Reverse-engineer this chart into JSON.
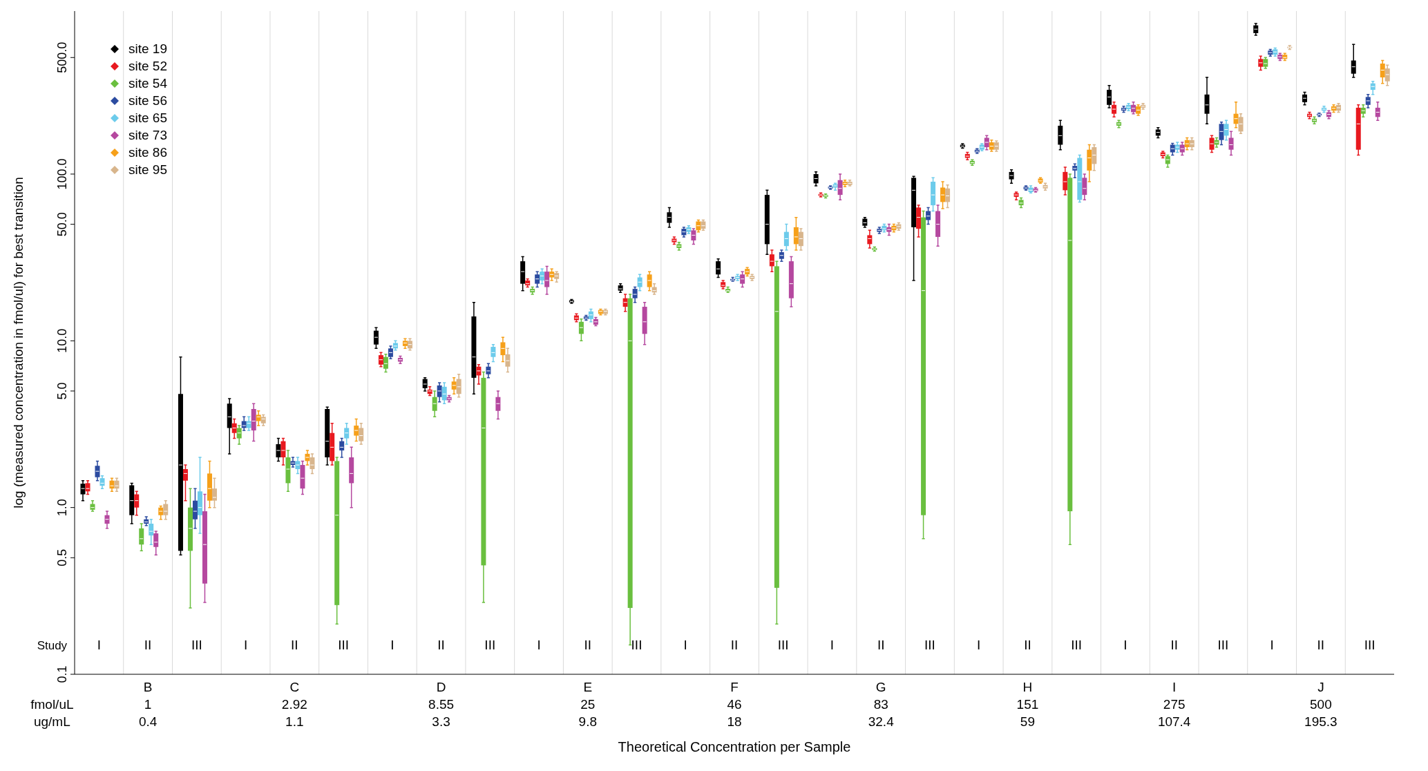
{
  "chart_data": {
    "type": "box",
    "xlabel": "Theoretical Concentration per Sample",
    "ylabel": "log (measured concentration in fmol/ul) for best transition",
    "categories": [
      "I",
      "II",
      "III",
      "I",
      "II",
      "III",
      "I",
      "II",
      "III",
      "I",
      "II",
      "III",
      "I",
      "II",
      "III",
      "I",
      "II",
      "III",
      "I",
      "II",
      "III",
      "I",
      "II",
      "III",
      "I",
      "II",
      "III"
    ],
    "annotations": [
      "Study",
      "fmol/uL",
      "ug/mL",
      "B",
      "1",
      "0.4",
      "C",
      "2.92",
      "1.1",
      "D",
      "8.55",
      "3.3",
      "E",
      "25",
      "9.8",
      "F",
      "46",
      "18",
      "G",
      "83",
      "32.4",
      "H",
      "151",
      "59",
      "I",
      "275",
      "107.4",
      "J",
      "500",
      "195.3"
    ],
    "log": "y",
    "ylim": [
      0.1,
      950
    ],
    "yticks": [
      0.1,
      0.5,
      {
        "value": 1,
        "label": "1.0"
      },
      {
        "value": 5,
        "label": "5.0"
      },
      {
        "value": 10,
        "label": "10.0"
      },
      {
        "value": 50,
        "label": "50.0"
      },
      {
        "value": 100,
        "label": "100.0"
      },
      {
        "value": 500,
        "label": "500.0"
      }
    ],
    "grid": "x",
    "legend": "top left",
    "series": [
      {
        "name": "site 19",
        "color": "#000000",
        "boxes": [
          {
            "low": 1.1,
            "q1": 1.2,
            "median": 1.3,
            "q3": 1.39,
            "high": 1.45
          },
          {
            "low": 0.8,
            "q1": 0.9,
            "median": 1.1,
            "q3": 1.36,
            "high": 1.4
          },
          {
            "low": 0.52,
            "q1": 0.55,
            "median": 1.8,
            "q3": 4.8,
            "high": 8
          },
          {
            "low": 2.1,
            "q1": 3,
            "median": 3.5,
            "q3": 4.2,
            "high": 4.5
          },
          {
            "low": 1.9,
            "q1": 2,
            "median": 2.2,
            "q3": 2.4,
            "high": 2.6
          },
          {
            "low": 1.8,
            "q1": 2,
            "median": 2.5,
            "q3": 3.9,
            "high": 4
          },
          {
            "low": 9,
            "q1": 9.5,
            "median": 10.5,
            "q3": 11.5,
            "high": 12
          },
          {
            "low": 5,
            "q1": 5.2,
            "median": 5.5,
            "q3": 5.9,
            "high": 6
          },
          {
            "low": 4.8,
            "q1": 6,
            "median": 8,
            "q3": 14,
            "high": 17
          },
          {
            "low": 20,
            "q1": 22,
            "median": 26,
            "q3": 30,
            "high": 32
          },
          {
            "low": 16.8,
            "q1": 17,
            "median": 17.2,
            "q3": 17.5,
            "high": 17.7
          },
          {
            "low": 19.5,
            "q1": 20,
            "median": 20.5,
            "q3": 21.5,
            "high": 22
          },
          {
            "low": 48,
            "q1": 51,
            "median": 55,
            "q3": 59,
            "high": 63
          },
          {
            "low": 24,
            "q1": 25,
            "median": 27,
            "q3": 30,
            "high": 31
          },
          {
            "low": 33,
            "q1": 38,
            "median": 50,
            "q3": 75,
            "high": 80
          },
          {
            "low": 85,
            "q1": 88,
            "median": 94,
            "q3": 100,
            "high": 103
          },
          {
            "low": 48,
            "q1": 49,
            "median": 51,
            "q3": 54,
            "high": 55
          },
          {
            "low": 23,
            "q1": 48,
            "median": 80,
            "q3": 95,
            "high": 97
          },
          {
            "low": 143,
            "q1": 145,
            "median": 147,
            "q3": 150,
            "high": 152
          },
          {
            "low": 88,
            "q1": 93,
            "median": 98,
            "q3": 103,
            "high": 106
          },
          {
            "low": 140,
            "q1": 150,
            "median": 170,
            "q3": 195,
            "high": 210
          },
          {
            "low": 250,
            "q1": 260,
            "median": 290,
            "q3": 320,
            "high": 340
          },
          {
            "low": 165,
            "q1": 170,
            "median": 178,
            "q3": 185,
            "high": 190
          },
          {
            "low": 200,
            "q1": 230,
            "median": 260,
            "q3": 300,
            "high": 380
          },
          {
            "low": 680,
            "q1": 700,
            "median": 740,
            "q3": 780,
            "high": 800
          },
          {
            "low": 260,
            "q1": 270,
            "median": 285,
            "q3": 300,
            "high": 310
          },
          {
            "low": 380,
            "q1": 400,
            "median": 440,
            "q3": 480,
            "high": 600
          }
        ]
      },
      {
        "name": "site 52",
        "color": "#e8191f",
        "boxes": [
          {
            "low": 1.2,
            "q1": 1.25,
            "median": 1.3,
            "q3": 1.4,
            "high": 1.45
          },
          {
            "low": 0.9,
            "q1": 1,
            "median": 1.1,
            "q3": 1.2,
            "high": 1.25
          },
          {
            "low": 1.1,
            "q1": 1.45,
            "median": 1.6,
            "q3": 1.7,
            "high": 1.8
          },
          {
            "low": 2.6,
            "q1": 2.8,
            "median": 3,
            "q3": 3.2,
            "high": 3.4
          },
          {
            "low": 1.8,
            "q1": 2,
            "median": 2.2,
            "q3": 2.5,
            "high": 2.6
          },
          {
            "low": 1.8,
            "q1": 1.9,
            "median": 2.3,
            "q3": 2.8,
            "high": 3.2
          },
          {
            "low": 7,
            "q1": 7.2,
            "median": 7.7,
            "q3": 8.2,
            "high": 8.5
          },
          {
            "low": 4.7,
            "q1": 4.8,
            "median": 5,
            "q3": 5.1,
            "high": 5.3
          },
          {
            "low": 5.5,
            "q1": 6.2,
            "median": 6.6,
            "q3": 7,
            "high": 7.2
          },
          {
            "low": 21,
            "q1": 21.5,
            "median": 22,
            "q3": 23,
            "high": 23.5
          },
          {
            "low": 13,
            "q1": 13.3,
            "median": 13.7,
            "q3": 14.2,
            "high": 14.5
          },
          {
            "low": 15,
            "q1": 16,
            "median": 17,
            "q3": 18,
            "high": 19
          },
          {
            "low": 38,
            "q1": 39,
            "median": 40,
            "q3": 41,
            "high": 42
          },
          {
            "low": 20.5,
            "q1": 21,
            "median": 21.5,
            "q3": 22.5,
            "high": 23
          },
          {
            "low": 26,
            "q1": 28,
            "median": 30,
            "q3": 33,
            "high": 35
          },
          {
            "low": 73,
            "q1": 74,
            "median": 75,
            "q3": 76,
            "high": 77
          },
          {
            "low": 36,
            "q1": 38,
            "median": 41,
            "q3": 43,
            "high": 46
          },
          {
            "low": 42,
            "q1": 47,
            "median": 55,
            "q3": 63,
            "high": 65
          },
          {
            "low": 122,
            "q1": 125,
            "median": 128,
            "q3": 132,
            "high": 135
          },
          {
            "low": 70,
            "q1": 73,
            "median": 75,
            "q3": 77,
            "high": 78
          },
          {
            "low": 75,
            "q1": 80,
            "median": 90,
            "q3": 103,
            "high": 110
          },
          {
            "low": 220,
            "q1": 230,
            "median": 245,
            "q3": 260,
            "high": 270
          },
          {
            "low": 125,
            "q1": 128,
            "median": 131,
            "q3": 135,
            "high": 137
          },
          {
            "low": 135,
            "q1": 140,
            "median": 152,
            "q3": 165,
            "high": 170
          },
          {
            "low": 420,
            "q1": 440,
            "median": 465,
            "q3": 490,
            "high": 510
          },
          {
            "low": 215,
            "q1": 220,
            "median": 225,
            "q3": 230,
            "high": 235
          },
          {
            "low": 130,
            "q1": 140,
            "median": 200,
            "q3": 250,
            "high": 260
          }
        ]
      },
      {
        "name": "site 54",
        "color": "#6abf3f",
        "boxes": [
          {
            "low": 0.95,
            "q1": 0.97,
            "median": 1,
            "q3": 1.05,
            "high": 1.1
          },
          {
            "low": 0.55,
            "q1": 0.6,
            "median": 0.65,
            "q3": 0.75,
            "high": 0.8
          },
          {
            "low": 0.25,
            "q1": 0.55,
            "median": 0.75,
            "q3": 1,
            "high": 1.3
          },
          {
            "low": 2.4,
            "q1": 2.6,
            "median": 2.8,
            "q3": 3,
            "high": 3.1
          },
          {
            "low": 1.25,
            "q1": 1.4,
            "median": 1.7,
            "q3": 2,
            "high": 2.2
          },
          {
            "low": 0.2,
            "q1": 0.26,
            "median": 0.9,
            "q3": 1.9,
            "high": 2
          },
          {
            "low": 6.5,
            "q1": 6.8,
            "median": 7.3,
            "q3": 8,
            "high": 8.3
          },
          {
            "low": 3.5,
            "q1": 3.8,
            "median": 4.2,
            "q3": 4.6,
            "high": 5
          },
          {
            "low": 0.27,
            "q1": 0.45,
            "median": 3,
            "q3": 6,
            "high": 6.5
          },
          {
            "low": 19,
            "q1": 19.5,
            "median": 20,
            "q3": 20.5,
            "high": 21
          },
          {
            "low": 10,
            "q1": 11,
            "median": 12,
            "q3": 13,
            "high": 13.5
          },
          {
            "low": 0.15,
            "q1": 0.25,
            "median": 10,
            "q3": 18,
            "high": 19
          },
          {
            "low": 35,
            "q1": 36,
            "median": 37,
            "q3": 38,
            "high": 39
          },
          {
            "low": 19.5,
            "q1": 19.8,
            "median": 20,
            "q3": 20.5,
            "high": 21
          },
          {
            "low": 0.2,
            "q1": 0.33,
            "median": 15,
            "q3": 28,
            "high": 30
          },
          {
            "low": 72,
            "q1": 73,
            "median": 74,
            "q3": 75,
            "high": 76
          },
          {
            "low": 34.5,
            "q1": 35,
            "median": 35.5,
            "q3": 36,
            "high": 36.5
          },
          {
            "low": 0.65,
            "q1": 0.9,
            "median": 20,
            "q3": 55,
            "high": 60
          },
          {
            "low": 113,
            "q1": 115,
            "median": 117,
            "q3": 120,
            "high": 122
          },
          {
            "low": 63,
            "q1": 65,
            "median": 67,
            "q3": 70,
            "high": 72
          },
          {
            "low": 0.6,
            "q1": 0.95,
            "median": 40,
            "q3": 95,
            "high": 100
          },
          {
            "low": 190,
            "q1": 195,
            "median": 200,
            "q3": 205,
            "high": 210
          },
          {
            "low": 110,
            "q1": 115,
            "median": 122,
            "q3": 128,
            "high": 130
          },
          {
            "low": 145,
            "q1": 150,
            "median": 155,
            "q3": 160,
            "high": 165
          },
          {
            "low": 430,
            "q1": 440,
            "median": 460,
            "q3": 490,
            "high": 500
          },
          {
            "low": 200,
            "q1": 205,
            "median": 210,
            "q3": 215,
            "high": 220
          },
          {
            "low": 220,
            "q1": 230,
            "median": 240,
            "q3": 250,
            "high": 260
          }
        ]
      },
      {
        "name": "site 56",
        "color": "#2b4ba0",
        "boxes": [
          {
            "low": 1.45,
            "q1": 1.52,
            "median": 1.65,
            "q3": 1.78,
            "high": 1.9
          },
          {
            "low": 0.78,
            "q1": 0.8,
            "median": 0.82,
            "q3": 0.85,
            "high": 0.88
          },
          {
            "low": 0.75,
            "q1": 0.85,
            "median": 0.95,
            "q3": 1.1,
            "high": 1.3
          },
          {
            "low": 2.9,
            "q1": 3,
            "median": 3.1,
            "q3": 3.3,
            "high": 3.5
          },
          {
            "low": 1.75,
            "q1": 1.8,
            "median": 1.85,
            "q3": 1.9,
            "high": 2
          },
          {
            "low": 2,
            "q1": 2.2,
            "median": 2.3,
            "q3": 2.5,
            "high": 2.6
          },
          {
            "low": 7.8,
            "q1": 8,
            "median": 8.5,
            "q3": 9,
            "high": 9.3
          },
          {
            "low": 4.3,
            "q1": 4.6,
            "median": 5,
            "q3": 5.4,
            "high": 5.6
          },
          {
            "low": 6,
            "q1": 6.3,
            "median": 6.6,
            "q3": 7,
            "high": 7.3
          },
          {
            "low": 21,
            "q1": 22,
            "median": 23.5,
            "q3": 25,
            "high": 26
          },
          {
            "low": 13.3,
            "q1": 13.5,
            "median": 13.7,
            "q3": 14,
            "high": 14.2
          },
          {
            "low": 17,
            "q1": 18,
            "median": 19,
            "q3": 20.5,
            "high": 21
          },
          {
            "low": 42,
            "q1": 43,
            "median": 45,
            "q3": 47,
            "high": 48
          },
          {
            "low": 22.8,
            "q1": 23,
            "median": 23.2,
            "q3": 23.5,
            "high": 24
          },
          {
            "low": 30,
            "q1": 31,
            "median": 32.5,
            "q3": 34,
            "high": 35
          },
          {
            "low": 81,
            "q1": 82,
            "median": 83,
            "q3": 84,
            "high": 85
          },
          {
            "low": 44,
            "q1": 45,
            "median": 46,
            "q3": 47,
            "high": 48
          },
          {
            "low": 50,
            "q1": 53,
            "median": 56,
            "q3": 60,
            "high": 63
          },
          {
            "low": 133,
            "q1": 135,
            "median": 137,
            "q3": 140,
            "high": 142
          },
          {
            "low": 80,
            "q1": 81,
            "median": 82.5,
            "q3": 84,
            "high": 85
          },
          {
            "low": 95,
            "q1": 105,
            "median": 108,
            "q3": 112,
            "high": 115
          },
          {
            "low": 235,
            "q1": 240,
            "median": 245,
            "q3": 250,
            "high": 255
          },
          {
            "low": 130,
            "q1": 135,
            "median": 142,
            "q3": 150,
            "high": 153
          },
          {
            "low": 150,
            "q1": 160,
            "median": 180,
            "q3": 200,
            "high": 205
          },
          {
            "low": 510,
            "q1": 520,
            "median": 535,
            "q3": 550,
            "high": 560
          },
          {
            "low": 222,
            "q1": 225,
            "median": 228,
            "q3": 230,
            "high": 232
          },
          {
            "low": 250,
            "q1": 260,
            "median": 275,
            "q3": 290,
            "high": 300
          }
        ]
      },
      {
        "name": "site 65",
        "color": "#6ccbeb",
        "boxes": [
          {
            "low": 1.3,
            "q1": 1.35,
            "median": 1.4,
            "q3": 1.5,
            "high": 1.55
          },
          {
            "low": 0.6,
            "q1": 0.68,
            "median": 0.72,
            "q3": 0.8,
            "high": 0.85
          },
          {
            "low": 0.7,
            "q1": 0.9,
            "median": 1,
            "q3": 1.25,
            "high": 2
          },
          {
            "low": 2.9,
            "q1": 3,
            "median": 3.2,
            "q3": 3.3,
            "high": 3.5
          },
          {
            "low": 1.6,
            "q1": 1.7,
            "median": 1.8,
            "q3": 1.9,
            "high": 2
          },
          {
            "low": 2.4,
            "q1": 2.6,
            "median": 2.8,
            "q3": 3,
            "high": 3.2
          },
          {
            "low": 8.8,
            "q1": 9,
            "median": 9.3,
            "q3": 9.7,
            "high": 10
          },
          {
            "low": 4.2,
            "q1": 4.4,
            "median": 4.8,
            "q3": 5.3,
            "high": 5.6
          },
          {
            "low": 7.5,
            "q1": 8,
            "median": 8.5,
            "q3": 9.2,
            "high": 9.5
          },
          {
            "low": 22,
            "q1": 23,
            "median": 24.5,
            "q3": 26,
            "high": 27
          },
          {
            "low": 13,
            "q1": 13.5,
            "median": 14.3,
            "q3": 15,
            "high": 15.5
          },
          {
            "low": 20,
            "q1": 21,
            "median": 22.5,
            "q3": 24,
            "high": 25
          },
          {
            "low": 44,
            "q1": 45,
            "median": 46.5,
            "q3": 48,
            "high": 49
          },
          {
            "low": 23,
            "q1": 23.5,
            "median": 24,
            "q3": 24.5,
            "high": 25
          },
          {
            "low": 35,
            "q1": 37,
            "median": 41,
            "q3": 45,
            "high": 50
          },
          {
            "low": 80,
            "q1": 83,
            "median": 85,
            "q3": 87,
            "high": 88
          },
          {
            "low": 45,
            "q1": 46,
            "median": 47,
            "q3": 49,
            "high": 50
          },
          {
            "low": 60,
            "q1": 65,
            "median": 75,
            "q3": 90,
            "high": 95
          },
          {
            "low": 138,
            "q1": 140,
            "median": 145,
            "q3": 150,
            "high": 152
          },
          {
            "low": 77,
            "q1": 78,
            "median": 80,
            "q3": 83,
            "high": 85
          },
          {
            "low": 68,
            "q1": 70,
            "median": 90,
            "q3": 125,
            "high": 130
          },
          {
            "low": 240,
            "q1": 245,
            "median": 252,
            "q3": 260,
            "high": 265
          },
          {
            "low": 135,
            "q1": 140,
            "median": 145,
            "q3": 150,
            "high": 155
          },
          {
            "low": 160,
            "q1": 170,
            "median": 185,
            "q3": 200,
            "high": 210
          },
          {
            "low": 510,
            "q1": 520,
            "median": 540,
            "q3": 560,
            "high": 570
          },
          {
            "low": 235,
            "q1": 240,
            "median": 245,
            "q3": 250,
            "high": 255
          },
          {
            "low": 300,
            "q1": 320,
            "median": 335,
            "q3": 350,
            "high": 360
          }
        ]
      },
      {
        "name": "site 73",
        "color": "#b5489f",
        "boxes": [
          {
            "low": 0.75,
            "q1": 0.8,
            "median": 0.85,
            "q3": 0.9,
            "high": 0.95
          },
          {
            "low": 0.52,
            "q1": 0.58,
            "median": 0.62,
            "q3": 0.7,
            "high": 0.72
          },
          {
            "low": 0.27,
            "q1": 0.35,
            "median": 0.6,
            "q3": 0.95,
            "high": 1.2
          },
          {
            "low": 2.5,
            "q1": 2.9,
            "median": 3.3,
            "q3": 3.9,
            "high": 4.2
          },
          {
            "low": 1.2,
            "q1": 1.3,
            "median": 1.5,
            "q3": 1.8,
            "high": 1.9
          },
          {
            "low": 1,
            "q1": 1.4,
            "median": 1.6,
            "q3": 2,
            "high": 2.3
          },
          {
            "low": 7.3,
            "q1": 7.5,
            "median": 7.7,
            "q3": 7.9,
            "high": 8.1
          },
          {
            "low": 4.3,
            "q1": 4.4,
            "median": 4.5,
            "q3": 4.6,
            "high": 4.7
          },
          {
            "low": 3.4,
            "q1": 3.8,
            "median": 4.2,
            "q3": 4.6,
            "high": 5
          },
          {
            "low": 19,
            "q1": 21,
            "median": 23,
            "q3": 26,
            "high": 28
          },
          {
            "low": 12.3,
            "q1": 12.5,
            "median": 13,
            "q3": 13.5,
            "high": 13.8
          },
          {
            "low": 9.5,
            "q1": 11,
            "median": 13,
            "q3": 16,
            "high": 17
          },
          {
            "low": 38,
            "q1": 40,
            "median": 43,
            "q3": 46,
            "high": 47
          },
          {
            "low": 21,
            "q1": 22,
            "median": 23.5,
            "q3": 25,
            "high": 26
          },
          {
            "low": 16,
            "q1": 18,
            "median": 22,
            "q3": 30,
            "high": 32
          },
          {
            "low": 70,
            "q1": 75,
            "median": 82,
            "q3": 92,
            "high": 100
          },
          {
            "low": 43,
            "q1": 45,
            "median": 46.5,
            "q3": 48,
            "high": 50
          },
          {
            "low": 37,
            "q1": 42,
            "median": 50,
            "q3": 60,
            "high": 65
          },
          {
            "low": 140,
            "q1": 145,
            "median": 155,
            "q3": 165,
            "high": 170
          },
          {
            "low": 78,
            "q1": 79,
            "median": 80,
            "q3": 82,
            "high": 83
          },
          {
            "low": 70,
            "q1": 75,
            "median": 82,
            "q3": 95,
            "high": 100
          },
          {
            "low": 230,
            "q1": 235,
            "median": 248,
            "q3": 260,
            "high": 270
          },
          {
            "low": 130,
            "q1": 135,
            "median": 142,
            "q3": 150,
            "high": 155
          },
          {
            "low": 130,
            "q1": 140,
            "median": 150,
            "q3": 165,
            "high": 180
          },
          {
            "low": 480,
            "q1": 490,
            "median": 505,
            "q3": 520,
            "high": 530
          },
          {
            "low": 215,
            "q1": 220,
            "median": 228,
            "q3": 235,
            "high": 240
          },
          {
            "low": 210,
            "q1": 220,
            "median": 235,
            "q3": 250,
            "high": 270
          }
        ]
      },
      {
        "name": "site 86",
        "color": "#f6a01a",
        "boxes": [
          {
            "low": 1.25,
            "q1": 1.3,
            "median": 1.35,
            "q3": 1.45,
            "high": 1.5
          },
          {
            "low": 0.85,
            "q1": 0.9,
            "median": 0.95,
            "q3": 1,
            "high": 1.02
          },
          {
            "low": 1,
            "q1": 1.1,
            "median": 1.3,
            "q3": 1.6,
            "high": 1.9
          },
          {
            "low": 3.1,
            "q1": 3.3,
            "median": 3.5,
            "q3": 3.6,
            "high": 3.8
          },
          {
            "low": 1.8,
            "q1": 1.9,
            "median": 2,
            "q3": 2.1,
            "high": 2.2
          },
          {
            "low": 2.5,
            "q1": 2.7,
            "median": 2.9,
            "q3": 3.1,
            "high": 3.4
          },
          {
            "low": 9,
            "q1": 9.3,
            "median": 9.7,
            "q3": 10,
            "high": 10.3
          },
          {
            "low": 4.8,
            "q1": 5.1,
            "median": 5.4,
            "q3": 5.7,
            "high": 6
          },
          {
            "low": 7.5,
            "q1": 8.2,
            "median": 9,
            "q3": 9.8,
            "high": 10.5
          },
          {
            "low": 23,
            "q1": 24,
            "median": 25,
            "q3": 26,
            "high": 27
          },
          {
            "low": 14.3,
            "q1": 14.5,
            "median": 15,
            "q3": 15.3,
            "high": 15.5
          },
          {
            "low": 20,
            "q1": 21,
            "median": 23,
            "q3": 25,
            "high": 26
          },
          {
            "low": 45,
            "q1": 46,
            "median": 49,
            "q3": 52,
            "high": 53
          },
          {
            "low": 24.5,
            "q1": 25,
            "median": 26,
            "q3": 27,
            "high": 27.5
          },
          {
            "low": 35,
            "q1": 38,
            "median": 42,
            "q3": 48,
            "high": 55
          },
          {
            "low": 84,
            "q1": 86,
            "median": 88,
            "q3": 90,
            "high": 92
          },
          {
            "low": 45,
            "q1": 46,
            "median": 47.5,
            "q3": 49,
            "high": 50
          },
          {
            "low": 62,
            "q1": 68,
            "median": 75,
            "q3": 83,
            "high": 90
          },
          {
            "low": 137,
            "q1": 140,
            "median": 147,
            "q3": 155,
            "high": 160
          },
          {
            "low": 88,
            "q1": 89,
            "median": 91,
            "q3": 94,
            "high": 95
          },
          {
            "low": 90,
            "q1": 105,
            "median": 125,
            "q3": 140,
            "high": 150
          },
          {
            "low": 225,
            "q1": 230,
            "median": 242,
            "q3": 255,
            "high": 260
          },
          {
            "low": 140,
            "q1": 145,
            "median": 152,
            "q3": 160,
            "high": 165
          },
          {
            "low": 190,
            "q1": 200,
            "median": 215,
            "q3": 230,
            "high": 270
          },
          {
            "low": 480,
            "q1": 490,
            "median": 500,
            "q3": 520,
            "high": 530
          },
          {
            "low": 235,
            "q1": 240,
            "median": 248,
            "q3": 255,
            "high": 260
          },
          {
            "low": 350,
            "q1": 380,
            "median": 420,
            "q3": 460,
            "high": 480
          }
        ]
      },
      {
        "name": "site 95",
        "color": "#d8b58c",
        "boxes": [
          {
            "low": 1.25,
            "q1": 1.3,
            "median": 1.35,
            "q3": 1.45,
            "high": 1.5
          },
          {
            "low": 0.85,
            "q1": 0.9,
            "median": 0.95,
            "q3": 1.05,
            "high": 1.1
          },
          {
            "low": 1,
            "q1": 1.1,
            "median": 1.15,
            "q3": 1.3,
            "high": 1.5
          },
          {
            "low": 3.1,
            "q1": 3.2,
            "median": 3.4,
            "q3": 3.5,
            "high": 3.6
          },
          {
            "low": 1.6,
            "q1": 1.7,
            "median": 1.8,
            "q3": 2,
            "high": 2.1
          },
          {
            "low": 2.4,
            "q1": 2.5,
            "median": 2.7,
            "q3": 3,
            "high": 3.2
          },
          {
            "low": 8.8,
            "q1": 9,
            "median": 9.5,
            "q3": 10,
            "high": 10.3
          },
          {
            "low": 4.6,
            "q1": 4.8,
            "median": 5.3,
            "q3": 5.9,
            "high": 6.3
          },
          {
            "low": 6.5,
            "q1": 7,
            "median": 7.6,
            "q3": 8.3,
            "high": 9
          },
          {
            "low": 22.5,
            "q1": 23.5,
            "median": 24.5,
            "q3": 25.5,
            "high": 26
          },
          {
            "low": 14.3,
            "q1": 14.5,
            "median": 15,
            "q3": 15.3,
            "high": 15.5
          },
          {
            "low": 19,
            "q1": 19.5,
            "median": 20,
            "q3": 21,
            "high": 22
          },
          {
            "low": 46,
            "q1": 47,
            "median": 49,
            "q3": 52,
            "high": 53
          },
          {
            "low": 23,
            "q1": 23.5,
            "median": 24,
            "q3": 24.5,
            "high": 25
          },
          {
            "low": 35,
            "q1": 37,
            "median": 41,
            "q3": 45,
            "high": 47
          },
          {
            "low": 85,
            "q1": 86,
            "median": 88,
            "q3": 90,
            "high": 92
          },
          {
            "low": 46,
            "q1": 47,
            "median": 48.5,
            "q3": 50,
            "high": 51
          },
          {
            "low": 63,
            "q1": 68,
            "median": 74,
            "q3": 82,
            "high": 86
          },
          {
            "low": 137,
            "q1": 140,
            "median": 147,
            "q3": 155,
            "high": 158
          },
          {
            "low": 80,
            "q1": 82,
            "median": 84,
            "q3": 86,
            "high": 88
          },
          {
            "low": 105,
            "q1": 115,
            "median": 130,
            "q3": 145,
            "high": 150
          },
          {
            "low": 245,
            "q1": 250,
            "median": 255,
            "q3": 260,
            "high": 265
          },
          {
            "low": 140,
            "q1": 145,
            "median": 152,
            "q3": 160,
            "high": 165
          },
          {
            "low": 175,
            "q1": 180,
            "median": 200,
            "q3": 220,
            "high": 230
          },
          {
            "low": 560,
            "q1": 570,
            "median": 575,
            "q3": 580,
            "high": 590
          },
          {
            "low": 235,
            "q1": 240,
            "median": 250,
            "q3": 260,
            "high": 265
          },
          {
            "low": 340,
            "q1": 360,
            "median": 395,
            "q3": 430,
            "high": 450
          }
        ]
      }
    ]
  }
}
